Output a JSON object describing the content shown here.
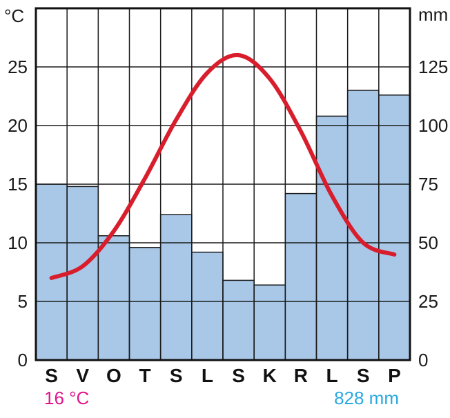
{
  "chart_data": {
    "type": "climate-diagram",
    "categories": [
      "S",
      "V",
      "O",
      "T",
      "S",
      "L",
      "S",
      "K",
      "R",
      "L",
      "S",
      "P"
    ],
    "temperature": {
      "unit_label": "°C",
      "values": [
        7.0,
        8.0,
        11.0,
        15.5,
        20.5,
        24.5,
        26.0,
        24.0,
        19.5,
        14.0,
        10.0,
        9.0
      ],
      "range": [
        0,
        30
      ],
      "ticks": [
        "0",
        "5",
        "10",
        "15",
        "20",
        "25"
      ],
      "color": "#d81e2c"
    },
    "precipitation": {
      "unit_label": "mm",
      "values": [
        75,
        74,
        53,
        48,
        62,
        46,
        34,
        32,
        71,
        104,
        115,
        113
      ],
      "range": [
        0,
        150
      ],
      "ticks": [
        "0",
        "25",
        "50",
        "75",
        "100",
        "125"
      ],
      "color": "#a9c8e8"
    },
    "grid": true
  },
  "summary": {
    "annual_temperature": "16 °C",
    "annual_temperature_color": "#e0158a",
    "annual_precipitation": "828 mm",
    "annual_precipitation_color": "#2aa8e0"
  }
}
